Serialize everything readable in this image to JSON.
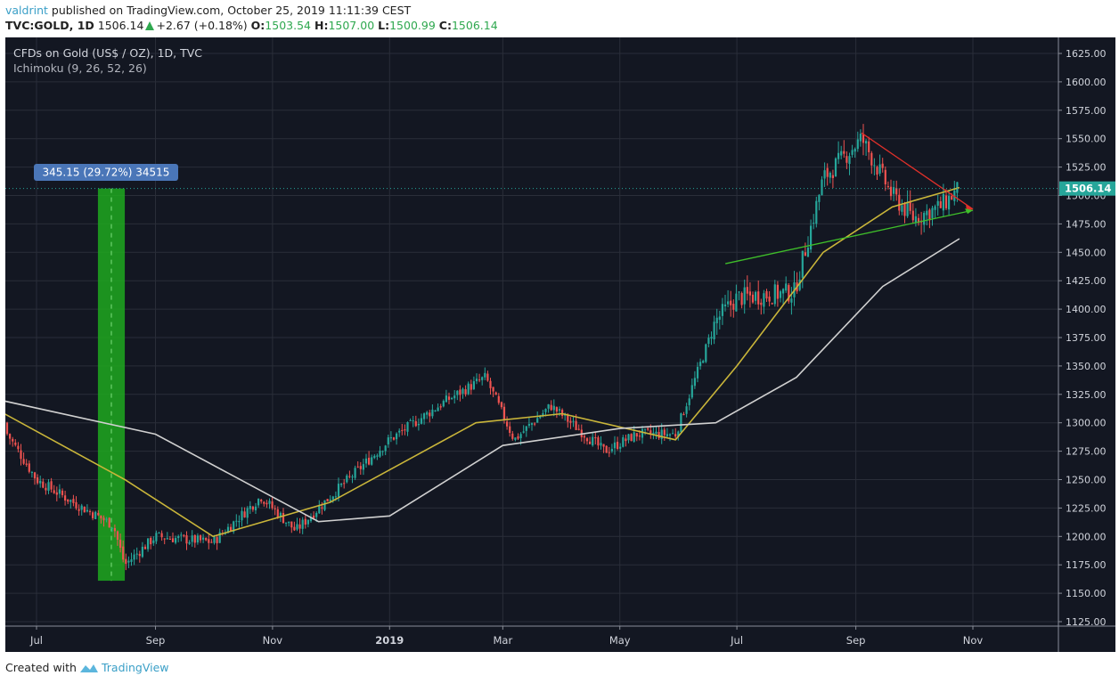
{
  "header": {
    "author": "valdrint",
    "published_text": "published on TradingView.com, October 25, 2019 11:11:39 CEST",
    "symbol": "TVC:GOLD, 1D",
    "last_price": "1506.14",
    "change": "+2.67 (+0.18%)",
    "open_label": "O:",
    "open": "1503.54",
    "high_label": "H:",
    "high": "1507.00",
    "low_label": "L:",
    "low": "1500.99",
    "close_label": "C:",
    "close": "1506.14"
  },
  "legend": {
    "title": "CFDs on Gold (US$ / OZ), 1D, TVC",
    "indicator": "Ichimoku (9, 26, 52, 26)"
  },
  "measure_label": "345.15 (29.72%) 34515",
  "price_tag": "1506.14",
  "footer": {
    "created_with": "Created with",
    "brand": "TradingView"
  },
  "colors": {
    "background": "#131722",
    "grid": "#2a2e39",
    "up_candle": "#26a69a",
    "down_candle": "#ef5350",
    "ma_yellow": "#c9b53a",
    "ma_white": "#d0d0d0",
    "resistance_line": "#e0302a",
    "support_line": "#3fbf2a",
    "measure_box": "#1ea81e",
    "price_tag": "#26a69a",
    "label_box": "#4a76b8"
  },
  "chart_data": {
    "type": "candlestick",
    "title": "CFDs on Gold (US$ / OZ), 1D, TVC",
    "xlabel": "",
    "ylabel": "",
    "ylim": [
      1125,
      1625
    ],
    "y_ticks": [
      "1625.00",
      "1600.00",
      "1575.00",
      "1550.00",
      "1525.00",
      "1500.00",
      "1475.00",
      "1450.00",
      "1425.00",
      "1400.00",
      "1375.00",
      "1350.00",
      "1325.00",
      "1300.00",
      "1275.00",
      "1250.00",
      "1225.00",
      "1200.00",
      "1175.00",
      "1150.00",
      "1125.00"
    ],
    "x_ticks": [
      "Jul",
      "Sep",
      "Nov",
      "2019",
      "Mar",
      "May",
      "Jul",
      "Sep",
      "Nov"
    ],
    "grid": true,
    "legend": [
      "Ichimoku (9, 26, 52, 26)"
    ],
    "approx_close_path": {
      "dates": [
        "2018-06-12",
        "2018-07-01",
        "2018-07-20",
        "2018-08-10",
        "2018-08-16",
        "2018-09-01",
        "2018-10-01",
        "2018-10-26",
        "2018-11-13",
        "2018-12-01",
        "2019-01-01",
        "2019-01-31",
        "2019-02-20",
        "2019-03-07",
        "2019-03-26",
        "2019-04-23",
        "2019-05-10",
        "2019-05-30",
        "2019-06-20",
        "2019-07-01",
        "2019-07-31",
        "2019-08-15",
        "2019-09-04",
        "2019-09-20",
        "2019-10-01",
        "2019-10-15",
        "2019-10-25"
      ],
      "values": [
        1300,
        1250,
        1230,
        1210,
        1175,
        1200,
        1195,
        1235,
        1205,
        1235,
        1285,
        1320,
        1340,
        1285,
        1315,
        1275,
        1290,
        1290,
        1390,
        1410,
        1415,
        1515,
        1550,
        1500,
        1480,
        1490,
        1506.14
      ]
    },
    "series": [
      {
        "name": "Moving average (yellow)",
        "points": [
          [
            "2018-06-12",
            1310
          ],
          [
            "2018-08-16",
            1250
          ],
          [
            "2018-10-01",
            1200
          ],
          [
            "2018-12-01",
            1230
          ],
          [
            "2019-02-15",
            1300
          ],
          [
            "2019-04-01",
            1308
          ],
          [
            "2019-05-30",
            1285
          ],
          [
            "2019-07-01",
            1350
          ],
          [
            "2019-08-15",
            1450
          ],
          [
            "2019-09-20",
            1490
          ],
          [
            "2019-10-25",
            1507
          ]
        ]
      },
      {
        "name": "Moving average (white)",
        "points": [
          [
            "2018-06-12",
            1320
          ],
          [
            "2018-09-01",
            1290
          ],
          [
            "2018-11-25",
            1213
          ],
          [
            "2019-01-01",
            1218
          ],
          [
            "2019-03-01",
            1280
          ],
          [
            "2019-05-01",
            1295
          ],
          [
            "2019-06-20",
            1300
          ],
          [
            "2019-08-01",
            1340
          ],
          [
            "2019-09-15",
            1420
          ],
          [
            "2019-10-25",
            1462
          ]
        ]
      }
    ],
    "annotations": [
      {
        "type": "measure",
        "text": "345.15 (29.72%) 34515",
        "from_price": 1161,
        "to_price": 1506.14,
        "date_range": [
          "2018-08-02",
          "2018-08-16"
        ]
      },
      {
        "type": "trendline",
        "name": "descending resistance",
        "from": [
          "2019-09-04",
          1555
        ],
        "to": [
          "2019-11-01",
          1488
        ]
      },
      {
        "type": "trendline",
        "name": "ascending support",
        "from": [
          "2019-06-25",
          1440
        ],
        "to": [
          "2019-11-01",
          1487
        ]
      },
      {
        "type": "horizontal_line",
        "price": 1506.14,
        "style": "dotted"
      }
    ]
  }
}
